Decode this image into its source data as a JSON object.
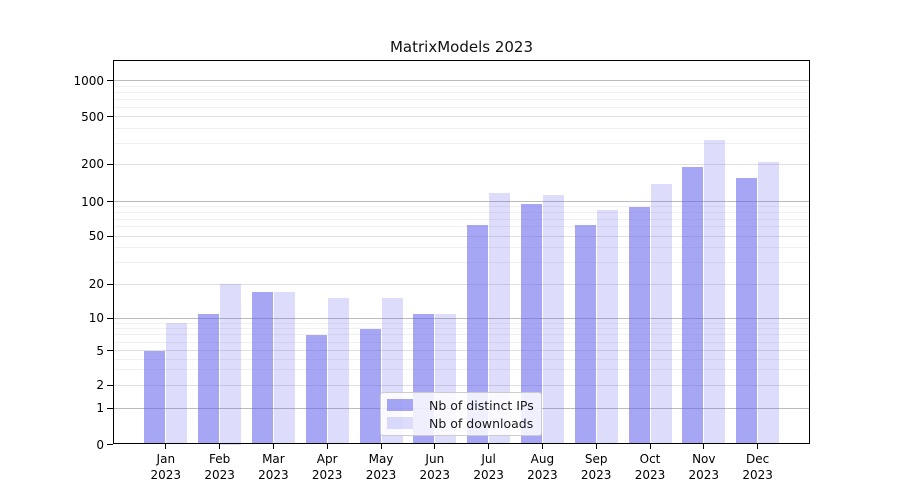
{
  "chart_data": {
    "type": "bar",
    "title": "MatrixModels 2023",
    "x_ticks": {
      "months": [
        "Jan",
        "Feb",
        "Mar",
        "Apr",
        "May",
        "Jun",
        "Jul",
        "Aug",
        "Sep",
        "Oct",
        "Nov",
        "Dec"
      ],
      "year": "2023"
    },
    "series": [
      {
        "name": "Nb of distinct IPs",
        "color": "#6666ee",
        "alpha": 0.58,
        "values": [
          5,
          11,
          17,
          7,
          8,
          11,
          62,
          95,
          63,
          90,
          190,
          155
        ]
      },
      {
        "name": "Nb of downloads",
        "color": "#6666ee",
        "alpha": 0.22,
        "values": [
          9,
          20,
          17,
          15,
          15,
          11,
          118,
          113,
          85,
          140,
          320,
          210
        ]
      }
    ],
    "y_axis": {
      "scale": "symlog",
      "ticks": [
        0,
        1,
        2,
        5,
        10,
        20,
        50,
        100,
        200,
        500,
        1000
      ],
      "mid_gridlines": [
        2,
        5,
        20,
        50,
        200,
        500
      ],
      "minor_gridlines": [
        3,
        4,
        6,
        7,
        8,
        9,
        30,
        40,
        60,
        70,
        80,
        90,
        300,
        400,
        600,
        700,
        800,
        900
      ],
      "ylim": [
        0,
        1500
      ],
      "grid": "on"
    },
    "legend_position": "lower center"
  },
  "colors": {
    "background": "#ffffff",
    "axes_edge": "#000000",
    "grid_major": "#bbbbbb",
    "grid_minor": "#f0f0f0"
  }
}
